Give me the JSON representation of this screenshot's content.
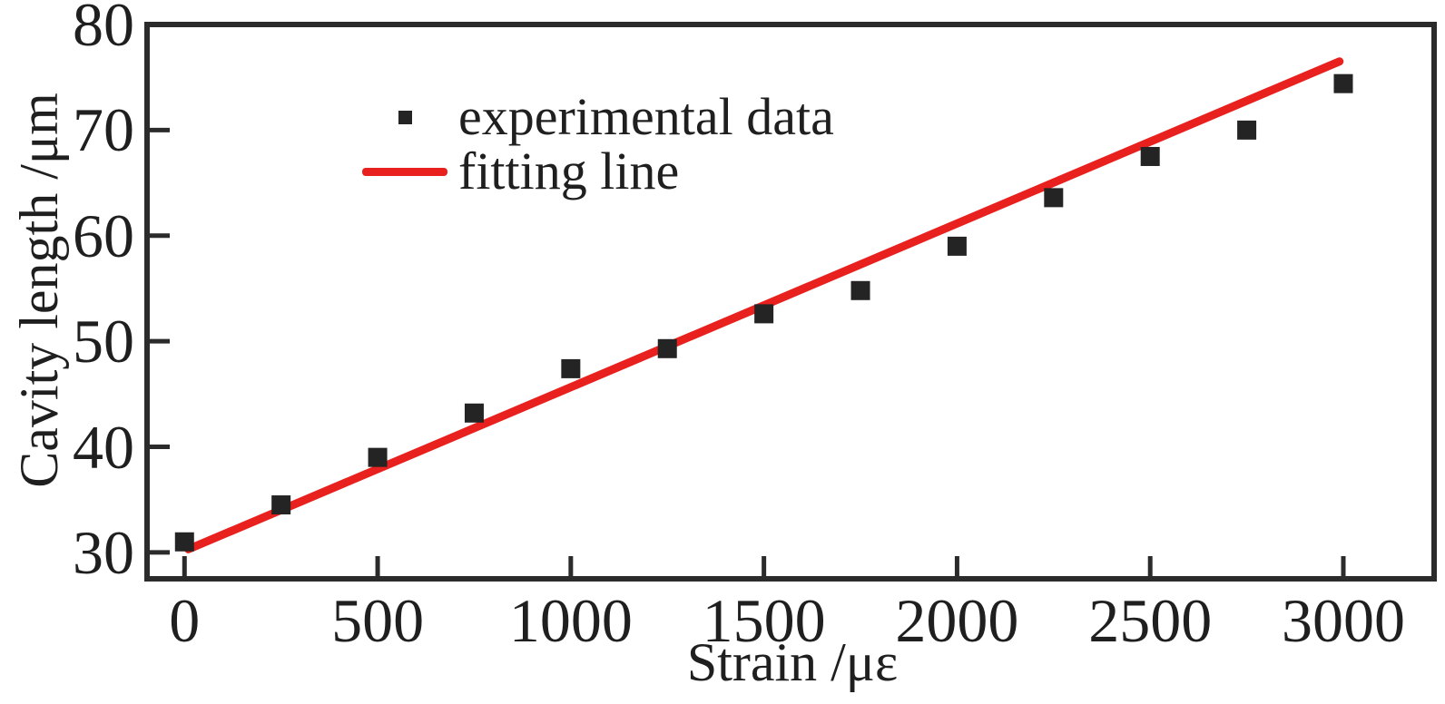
{
  "colors": {
    "background": "#ffffff",
    "frame": "#2b2b2b",
    "tick": "#2b2b2b",
    "text": "#1f1f1f",
    "marker": "#242424",
    "fit_line": "#e8201e"
  },
  "chart_data": {
    "type": "scatter",
    "title": "",
    "xlabel": "Strain /με",
    "ylabel": "Cavity length /μm",
    "xlim": [
      -97,
      3235
    ],
    "ylim": [
      27.5,
      80
    ],
    "x_ticks": [
      0,
      500,
      1000,
      1500,
      2000,
      2500,
      3000
    ],
    "y_ticks": [
      30,
      40,
      50,
      60,
      70,
      80
    ],
    "grid": false,
    "legend_position": "upper-left-inside",
    "series": [
      {
        "name": "experimental data",
        "type": "scatter",
        "marker": "square",
        "color": "#242424",
        "x": [
          0,
          250,
          500,
          750,
          1000,
          1250,
          1500,
          1750,
          2000,
          2250,
          2500,
          2750,
          3000
        ],
        "y": [
          31.0,
          34.5,
          39.0,
          43.2,
          47.4,
          49.3,
          52.6,
          54.8,
          59.0,
          63.6,
          67.5,
          70.0,
          74.4
        ]
      },
      {
        "name": "fitting line",
        "type": "line",
        "color": "#e8201e",
        "x": [
          10,
          2990
        ],
        "y": [
          30.3,
          76.5
        ]
      }
    ],
    "legend": {
      "entries": [
        {
          "label": "experimental data"
        },
        {
          "label": "fitting line"
        }
      ]
    }
  }
}
